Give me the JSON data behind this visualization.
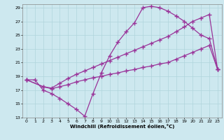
{
  "xlabel": "Windchill (Refroidissement éolien,°C)",
  "background_color": "#cde8ef",
  "grid_color": "#b0d4dc",
  "line_color": "#993399",
  "xlim": [
    -0.5,
    23.5
  ],
  "ylim": [
    13,
    29.5
  ],
  "xticks": [
    0,
    1,
    2,
    3,
    4,
    5,
    6,
    7,
    8,
    9,
    10,
    11,
    12,
    13,
    14,
    15,
    16,
    17,
    18,
    19,
    20,
    21,
    22,
    23
  ],
  "yticks": [
    13,
    15,
    17,
    19,
    21,
    23,
    25,
    27,
    29
  ],
  "line1_x": [
    0,
    1,
    2,
    3,
    4,
    5,
    6,
    7,
    8,
    9,
    10,
    11,
    12,
    13,
    14,
    15,
    16,
    17,
    18,
    19,
    20,
    21,
    22,
    23
  ],
  "line1_y": [
    18.5,
    18.5,
    17.0,
    16.5,
    15.8,
    15.0,
    14.2,
    13.2,
    16.5,
    19.5,
    22.0,
    24.0,
    25.5,
    26.8,
    29.0,
    29.2,
    29.0,
    28.5,
    27.8,
    27.0,
    26.0,
    25.0,
    24.5,
    20.0
  ],
  "line2_x": [
    0,
    2,
    3,
    4,
    5,
    6,
    7,
    8,
    9,
    10,
    11,
    12,
    13,
    14,
    15,
    16,
    17,
    18,
    19,
    20,
    21,
    22,
    23
  ],
  "line2_y": [
    18.5,
    17.5,
    17.2,
    17.5,
    17.8,
    18.2,
    18.5,
    18.8,
    19.0,
    19.3,
    19.5,
    19.8,
    20.0,
    20.3,
    20.5,
    20.8,
    21.0,
    21.5,
    22.0,
    22.5,
    23.0,
    23.5,
    20.0
  ],
  "line3_x": [
    0,
    2,
    3,
    4,
    5,
    6,
    7,
    8,
    9,
    10,
    11,
    12,
    13,
    14,
    15,
    16,
    17,
    18,
    19,
    20,
    21,
    22,
    23
  ],
  "line3_y": [
    18.5,
    17.5,
    17.3,
    18.0,
    18.7,
    19.3,
    19.8,
    20.3,
    20.8,
    21.3,
    21.8,
    22.3,
    22.8,
    23.3,
    23.8,
    24.3,
    24.8,
    25.5,
    26.2,
    27.0,
    27.5,
    28.0,
    20.0
  ]
}
